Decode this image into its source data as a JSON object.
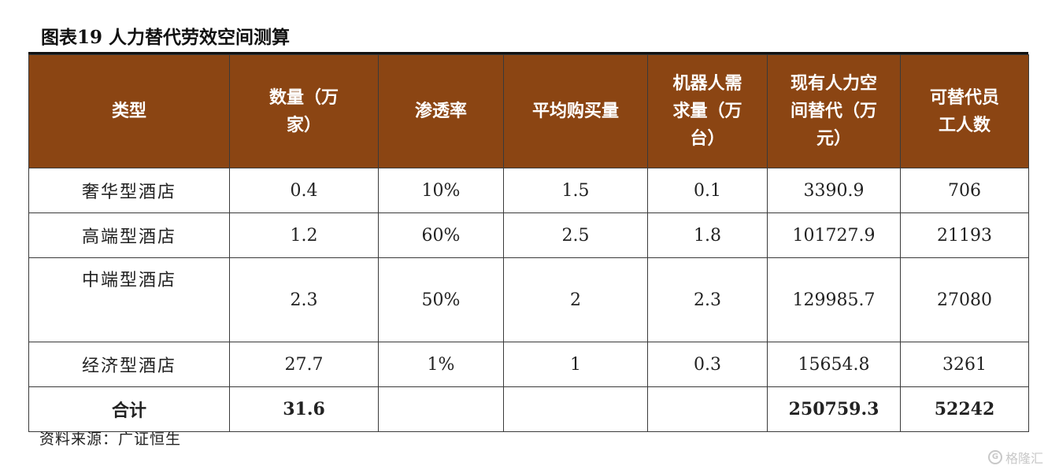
{
  "title": "图表19 人力替代劳效空间测算",
  "table": {
    "headers": [
      [
        "类型"
      ],
      [
        "数量（万",
        "家）"
      ],
      [
        "渗透率"
      ],
      [
        "平均购买量"
      ],
      [
        "机器人需",
        "求量（万",
        "台）"
      ],
      [
        "现有人力空",
        "间替代（万",
        "元）"
      ],
      [
        "可替代员",
        "工人数"
      ]
    ],
    "rows": [
      [
        "奢华型酒店",
        "0.4",
        "10%",
        "1.5",
        "0.1",
        "3390.9",
        "706"
      ],
      [
        "高端型酒店",
        "1.2",
        "60%",
        "2.5",
        "1.8",
        "101727.9",
        "21193"
      ],
      [
        "中端型酒店",
        "2.3",
        "50%",
        "2",
        "2.3",
        "129985.7",
        "27080"
      ],
      [
        "经济型酒店",
        "27.7",
        "1%",
        "1",
        "0.3",
        "15654.8",
        "3261"
      ]
    ],
    "total": [
      "合计",
      "31.6",
      "",
      "",
      "",
      "250759.3",
      "52242"
    ]
  },
  "source": "资料来源：广证恒生",
  "watermark": "格隆汇",
  "colors": {
    "header_bg": "#8b4513",
    "header_text": "#ffffff"
  }
}
